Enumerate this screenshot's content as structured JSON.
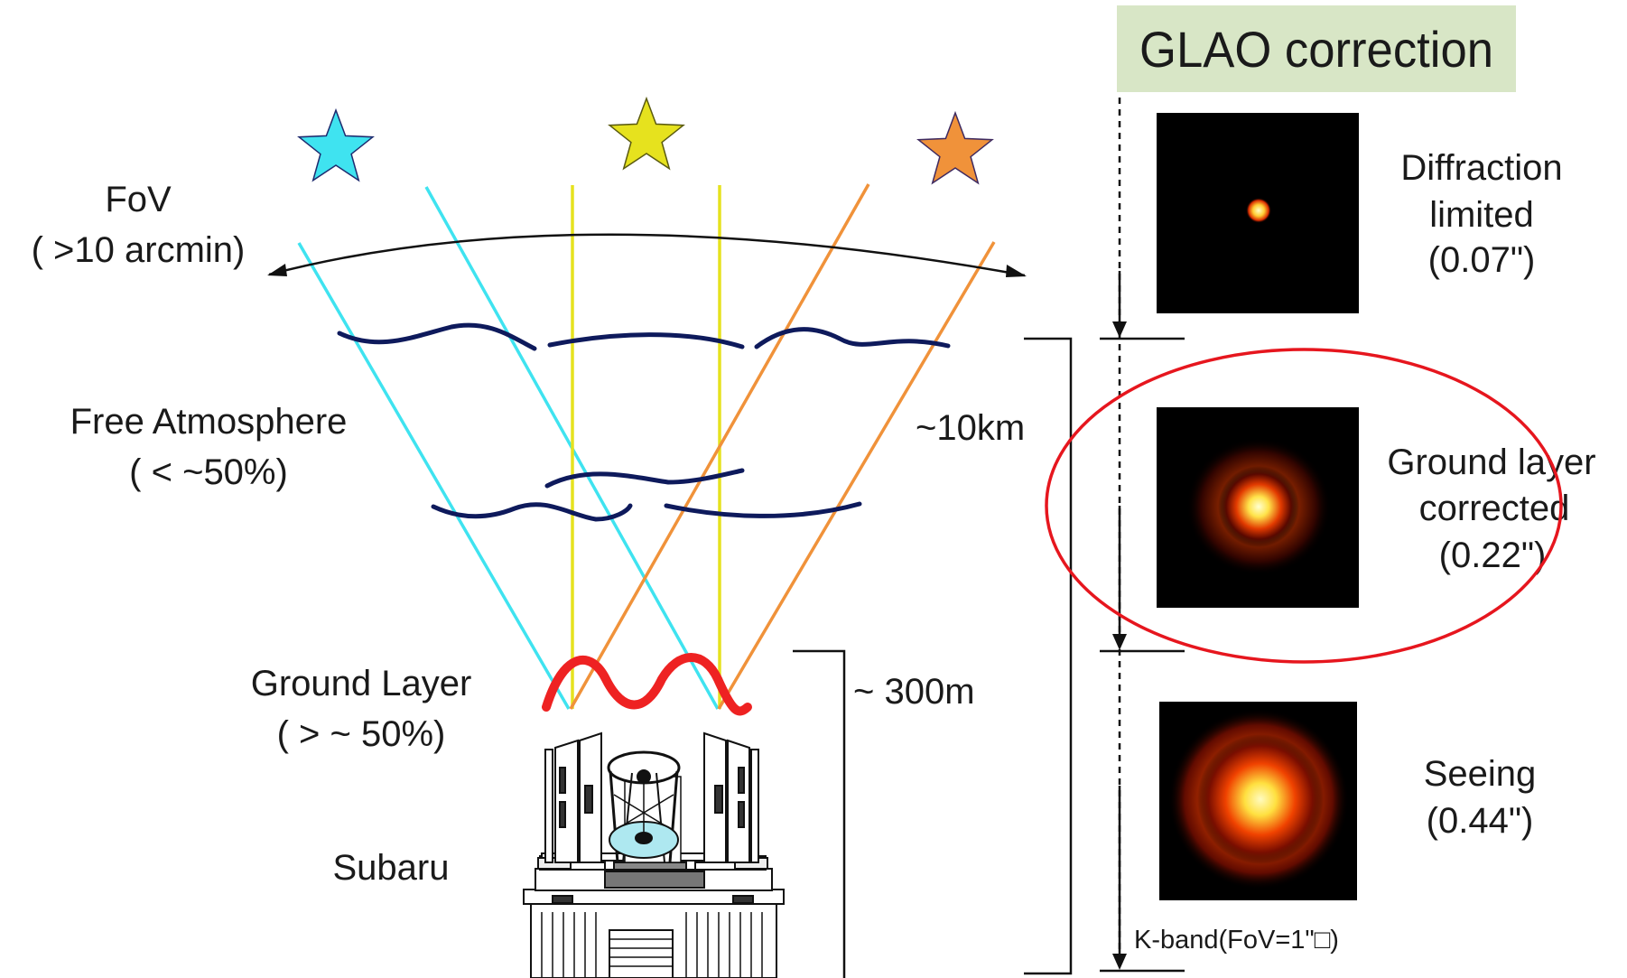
{
  "header": {
    "title": "GLAO correction",
    "bg_color": "#d8e6c6"
  },
  "labels": {
    "fov": [
      "FoV",
      "( >10 arcmin)"
    ],
    "free_atmosphere": [
      "Free Atmosphere",
      "( < ~50%)"
    ],
    "ground_layer": [
      "Ground Layer",
      "( > ~ 50%)"
    ],
    "telescope": "Subaru",
    "height_10km": "~10km",
    "height_300m": "~ 300m"
  },
  "psf_panels": [
    {
      "label": [
        "Diffraction",
        "limited",
        "(0.07\")"
      ],
      "highlighted": false
    },
    {
      "label": [
        "Ground layer",
        "corrected",
        "(0.22\")"
      ],
      "highlighted": true
    },
    {
      "label": [
        "Seeing",
        "(0.44\")"
      ],
      "highlighted": false
    }
  ],
  "footnote": "K-band(FoV=1\"□)",
  "colors": {
    "star_cyan": "#3fe3f0",
    "star_yellow": "#e6e21e",
    "star_orange": "#f0923a",
    "turbulence": "#0e1a5c",
    "ground_turbulence": "#ee2222",
    "highlight": "#e6161e"
  }
}
